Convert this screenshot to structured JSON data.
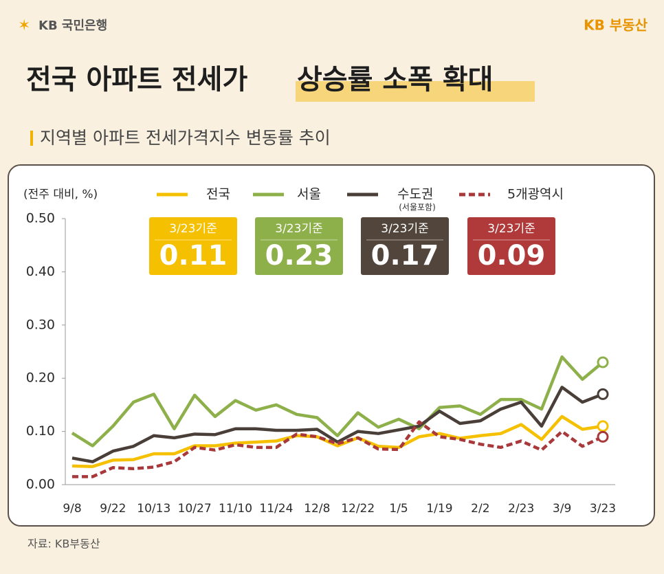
{
  "header": {
    "bank_logo": "KB 국민은행",
    "brand_logo": "KB 부동산"
  },
  "title": "전국 아파트 전세가",
  "title_highlight": "상승률 소폭 확대",
  "subtitle": "지역별 아파트 전세가격지수 변동률 추이",
  "source": "자료: KB부동산",
  "chart_data": {
    "type": "line",
    "y_label": "(전주 대비, %)",
    "highlight_label": "3/23기준",
    "categories": [
      "9/8",
      null,
      "9/22",
      null,
      "10/13",
      null,
      "10/27",
      null,
      "11/10",
      null,
      "11/24",
      null,
      "12/8",
      null,
      "12/22",
      null,
      "1/5",
      null,
      "1/19",
      null,
      "2/2",
      null,
      "2/23",
      null,
      "3/9",
      null,
      "3/23"
    ],
    "ylim": [
      0,
      0.5
    ],
    "yticks": [
      {
        "value": 0,
        "label": "0.00"
      },
      {
        "value": 0.1,
        "label": "0.10"
      },
      {
        "value": 0.2,
        "label": "0.20"
      },
      {
        "value": 0.3,
        "label": "0.30"
      },
      {
        "value": 0.4,
        "label": "0.40"
      },
      {
        "value": 0.5,
        "label": "0.50"
      }
    ],
    "grid": false,
    "series": [
      {
        "name": "전국",
        "color": "#f5c000",
        "dashed": false,
        "values": [
          0.035,
          0.034,
          0.046,
          0.047,
          0.058,
          0.058,
          0.073,
          0.073,
          0.078,
          0.08,
          0.082,
          0.092,
          0.09,
          0.073,
          0.088,
          0.072,
          0.07,
          0.09,
          0.096,
          0.087,
          0.092,
          0.096,
          0.113,
          0.085,
          0.128,
          0.104,
          0.11
        ]
      },
      {
        "name": "서울",
        "color": "#8db04a",
        "dashed": false,
        "values": [
          0.097,
          0.073,
          0.11,
          0.155,
          0.17,
          0.105,
          0.168,
          0.128,
          0.158,
          0.14,
          0.15,
          0.132,
          0.126,
          0.092,
          0.135,
          0.108,
          0.123,
          0.105,
          0.145,
          0.148,
          0.132,
          0.16,
          0.16,
          0.142,
          0.24,
          0.198,
          0.23
        ]
      },
      {
        "name": "수도권",
        "note": "(서울포함)",
        "color": "#4a3f38",
        "dashed": false,
        "values": [
          0.05,
          0.043,
          0.063,
          0.072,
          0.092,
          0.088,
          0.095,
          0.094,
          0.105,
          0.105,
          0.102,
          0.102,
          0.104,
          0.08,
          0.1,
          0.096,
          0.103,
          0.11,
          0.138,
          0.115,
          0.12,
          0.142,
          0.155,
          0.11,
          0.183,
          0.155,
          0.17
        ]
      },
      {
        "name": "5개광역시",
        "color": "#a8383a",
        "dashed": true,
        "values": [
          0.015,
          0.015,
          0.032,
          0.03,
          0.033,
          0.043,
          0.07,
          0.065,
          0.075,
          0.07,
          0.07,
          0.095,
          0.09,
          0.077,
          0.088,
          0.067,
          0.066,
          0.118,
          0.09,
          0.085,
          0.076,
          0.07,
          0.082,
          0.065,
          0.1,
          0.072,
          0.09
        ]
      }
    ]
  }
}
